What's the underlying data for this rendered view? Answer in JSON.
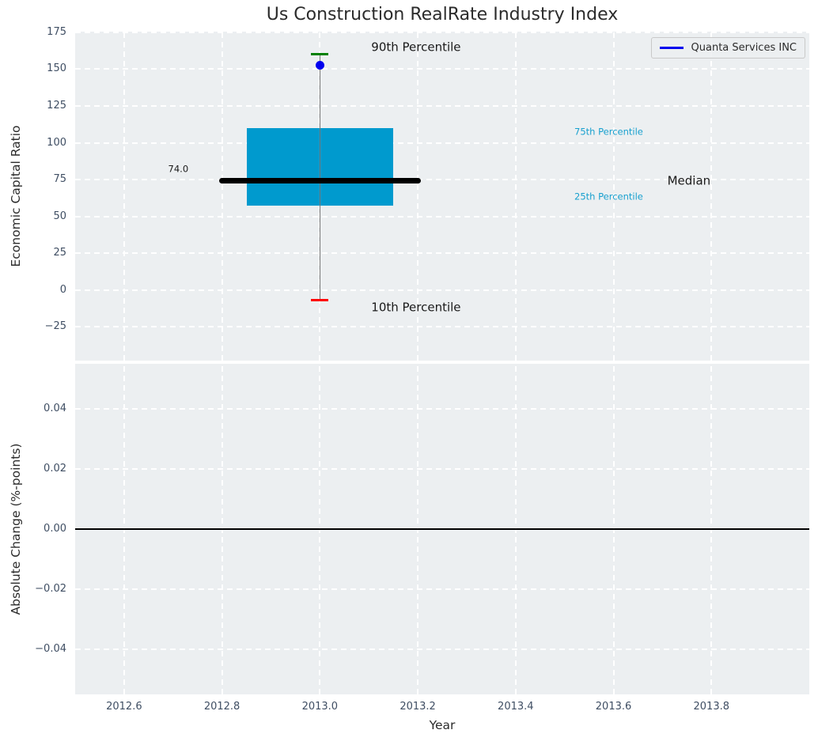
{
  "title": "Us Construction RealRate Industry Index",
  "legend": {
    "label": "Quanta Services INC"
  },
  "x_axis": {
    "label": "Year",
    "xlim": [
      2012.5,
      2014.0
    ],
    "ticks": [
      2012.6,
      2012.8,
      2013.0,
      2013.2,
      2013.4,
      2013.6,
      2013.8
    ],
    "tick_labels": [
      "2012.6",
      "2012.8",
      "2013.0",
      "2013.2",
      "2013.4",
      "2013.6",
      "2013.8"
    ]
  },
  "colors": {
    "axes_bg": "#eceff1",
    "grid": "#ffffff",
    "tick_label": "#3f4e63",
    "dark": "#1a1a1a",
    "cyan": "#18a0cf",
    "box_fill": "#009ace",
    "median_line": "#000000",
    "whisker": "#777777",
    "p90_cap": "#008000",
    "p10_cap": "#ff0000",
    "company_dot": "#0000ee",
    "zero_line": "#000000"
  },
  "chart_data": [
    {
      "type": "boxplot",
      "title": "Us Construction RealRate Industry Index",
      "ylabel": "Economic Capital Ratio",
      "ylim": [
        -48,
        175.5
      ],
      "yticks": [
        175,
        150,
        125,
        100,
        75,
        50,
        25,
        0,
        -25
      ],
      "ytick_labels": [
        "175",
        "150",
        "125",
        "100",
        "75",
        "50",
        "25",
        "0",
        "−25"
      ],
      "grid": "white-dashed",
      "legend_position": "upper-right",
      "box": {
        "x": 2013.0,
        "p10": -7,
        "p25": 57.5,
        "median": 74.0,
        "p75": 110,
        "p90": 160,
        "box_xmin": 2012.85,
        "box_xmax": 2013.15,
        "median_xmin": 2012.8,
        "median_xmax": 2013.2
      },
      "series": [
        {
          "name": "Quanta Services INC",
          "x": 2013.0,
          "y": 152.5,
          "marker": "circle"
        }
      ],
      "annotations": [
        {
          "text": "90th Percentile",
          "x": 2013.105,
          "y": 165,
          "color": "dark",
          "size": "lg"
        },
        {
          "text": "10th Percentile",
          "x": 2013.105,
          "y": -12,
          "color": "dark",
          "size": "lg"
        },
        {
          "text": "75th Percentile",
          "x": 2013.52,
          "y": 107,
          "color": "cyan",
          "size": "sm"
        },
        {
          "text": "25th Percentile",
          "x": 2013.52,
          "y": 63,
          "color": "cyan",
          "size": "sm"
        },
        {
          "text": "Median",
          "x": 2013.71,
          "y": 74,
          "color": "dark",
          "size": "lg"
        },
        {
          "text": "74.0",
          "x": 2012.69,
          "y": 82,
          "color": "dark",
          "size": "sm"
        }
      ]
    },
    {
      "type": "line",
      "ylabel": "Absolute Change (%-points)",
      "ylim": [
        -0.055,
        0.055
      ],
      "yticks": [
        0.04,
        0.02,
        0,
        -0.02,
        -0.04
      ],
      "ytick_labels": [
        "0.04",
        "0.02",
        "0.00",
        "−0.02",
        "−0.04"
      ],
      "zero_line": 0.0,
      "series": []
    }
  ]
}
